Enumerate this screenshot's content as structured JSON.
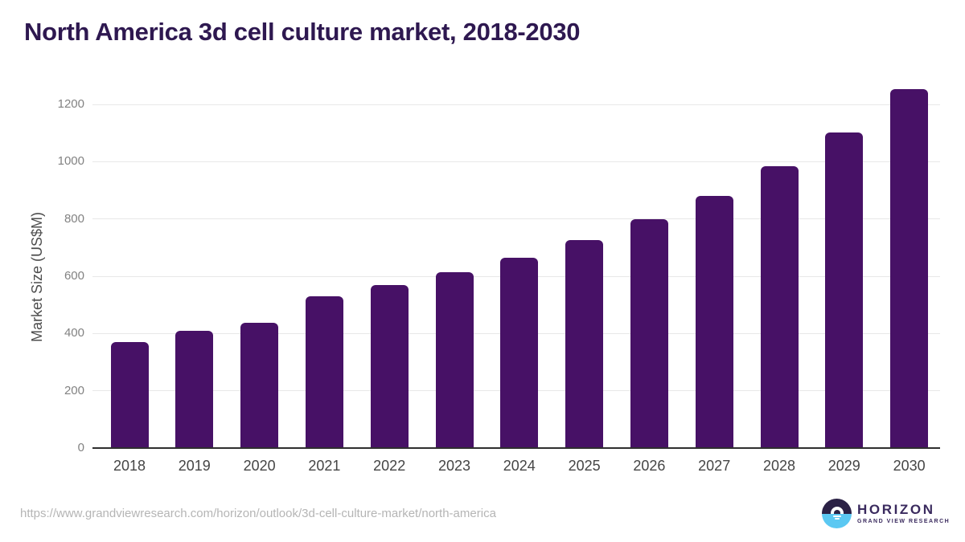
{
  "title": "North America 3d cell culture market, 2018-2030",
  "footer": {
    "source_url": "https://www.grandviewresearch.com/horizon/outlook/3d-cell-culture-market/north-america",
    "logo": {
      "brand": "HORIZON",
      "tagline": "GRAND VIEW RESEARCH"
    }
  },
  "colors": {
    "bar": "#471166",
    "title_text": "#2e1850",
    "axis_line": "#2f2f2f",
    "gridline": "#e8e8e8",
    "ytick_label": "#828282",
    "xtick_label": "#454545",
    "ylabel_text": "#4d4d4d",
    "url_text": "#b5b5b5",
    "logo_dark": "#2b2145",
    "logo_blue": "#5bc8f2",
    "logo_text": "#3a2a5e"
  },
  "chart_data": {
    "type": "bar",
    "categories": [
      "2018",
      "2019",
      "2020",
      "2021",
      "2022",
      "2023",
      "2024",
      "2025",
      "2026",
      "2027",
      "2028",
      "2029",
      "2030"
    ],
    "values": [
      371,
      410,
      437,
      530,
      570,
      615,
      664,
      725,
      798,
      880,
      983,
      1102,
      1254
    ],
    "title": "North America 3d cell culture market, 2018-2030",
    "xlabel": "",
    "ylabel": "Market Size (US$M)",
    "ylim": [
      0,
      1300
    ],
    "yticks": [
      0,
      200,
      400,
      600,
      800,
      1000,
      1200
    ],
    "grid": true,
    "legend": false,
    "bar_color": "#471166"
  }
}
